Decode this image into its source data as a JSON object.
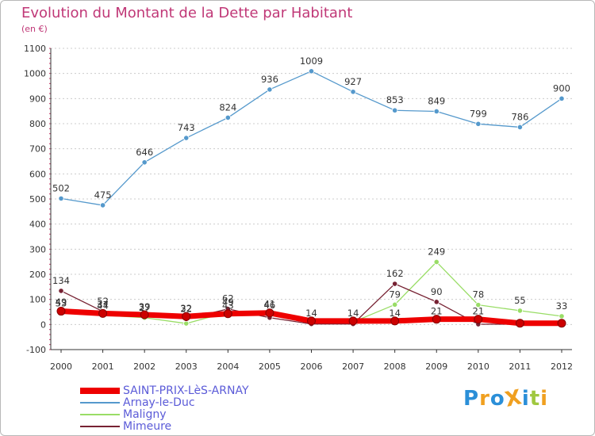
{
  "header": {
    "title": "Evolution du Montant de la Dette par Habitant",
    "subtitle": "(en €)"
  },
  "colors": {
    "title": "#c03877",
    "legend_text": "#5b5bd8",
    "axis": "#333333",
    "grid": "#cccccc"
  },
  "chart_data": {
    "type": "line",
    "title": "Evolution du Montant de la Dette par Habitant",
    "ylabel": "(en €)",
    "xlabel": "",
    "x": [
      "2000",
      "2001",
      "2002",
      "2003",
      "2004",
      "2005",
      "2006",
      "2007",
      "2008",
      "2009",
      "2010",
      "2011",
      "2012"
    ],
    "ylim": [
      -100,
      1100
    ],
    "yticks": [
      -100,
      0,
      100,
      200,
      300,
      400,
      500,
      600,
      700,
      800,
      900,
      1000,
      1100
    ],
    "grid": "horizontal",
    "legend_position": "bottom-left",
    "series": [
      {
        "name": "SAINT-PRIX-LèS-ARNAY",
        "color": "#ee0000",
        "values": [
          53,
          44,
          39,
          32,
          43,
          46,
          14,
          14,
          14,
          21,
          21,
          5,
          5
        ],
        "labels": [
          "53",
          "44",
          "39",
          "32",
          "43",
          "46",
          "14",
          "14",
          "14",
          "21",
          "21",
          "",
          ""
        ]
      },
      {
        "name": "Arnay-le-Duc",
        "color": "#5599cc",
        "values": [
          502,
          475,
          646,
          743,
          824,
          936,
          1009,
          927,
          853,
          849,
          799,
          786,
          900
        ],
        "labels": [
          "502",
          "475",
          "646",
          "743",
          "824",
          "936",
          "1009",
          "927",
          "853",
          "849",
          "799",
          "786",
          "900"
        ]
      },
      {
        "name": "Maligny",
        "color": "#99dd66",
        "values": [
          49,
          37,
          27,
          4,
          49,
          41,
          10,
          10,
          79,
          249,
          78,
          55,
          33
        ],
        "labels": [
          "49",
          "37",
          "27",
          "",
          "49",
          "41",
          "",
          "",
          "79",
          "249",
          "78",
          "55",
          "33"
        ]
      },
      {
        "name": "Mimeure",
        "color": "#772233",
        "values": [
          134,
          52,
          38,
          22,
          62,
          27,
          2,
          2,
          162,
          90,
          1,
          1,
          2
        ],
        "labels": [
          "134",
          "52",
          "",
          "22",
          "62",
          "",
          "",
          "",
          "162",
          "90",
          "",
          "",
          ""
        ]
      }
    ],
    "extra_labels": [
      "59",
      "34",
      "34",
      "32",
      "42",
      "45",
      "13",
      "11",
      "3",
      "5"
    ]
  },
  "logo": {
    "text": "ProXiti",
    "letters": [
      {
        "ch": "P",
        "color": "#2b8fd8"
      },
      {
        "ch": "r",
        "color": "#f0a020"
      },
      {
        "ch": "o",
        "color": "#2b8fd8"
      },
      {
        "ch": "X",
        "color": "#f0a020"
      },
      {
        "ch": "i",
        "color": "#2b8fd8"
      },
      {
        "ch": "t",
        "color": "#a0c840"
      },
      {
        "ch": "i",
        "color": "#f0a020"
      }
    ]
  }
}
